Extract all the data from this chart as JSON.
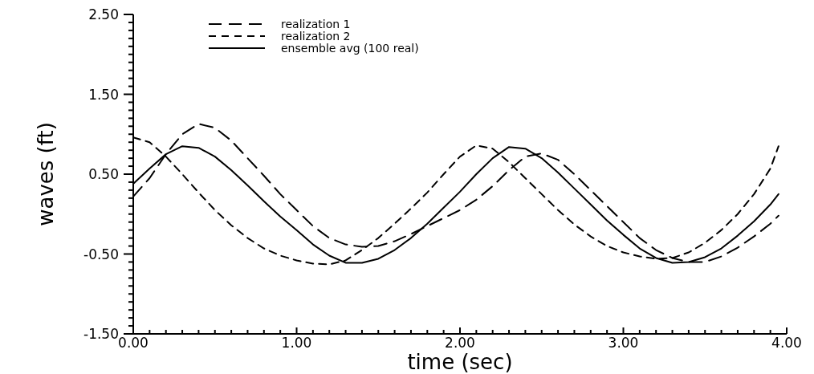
{
  "chart_data": {
    "type": "line",
    "xlabel": "time (sec)",
    "ylabel": "waves (ft)",
    "xlim": [
      0,
      4
    ],
    "ylim": [
      -1.5,
      2.5
    ],
    "legend": "top",
    "grid": false,
    "marker": "none",
    "xticks": [
      {
        "value": 0,
        "label": "0.00"
      },
      {
        "value": 0.1,
        "label": null
      },
      {
        "value": 0.2,
        "label": null
      },
      {
        "value": 0.3,
        "label": null
      },
      {
        "value": 0.4,
        "label": null
      },
      {
        "value": 0.5,
        "label": null
      },
      {
        "value": 0.6,
        "label": null
      },
      {
        "value": 0.7,
        "label": null
      },
      {
        "value": 0.8,
        "label": null
      },
      {
        "value": 0.9,
        "label": null
      },
      {
        "value": 1,
        "label": "1.00"
      },
      {
        "value": 1.1,
        "label": null
      },
      {
        "value": 1.2,
        "label": null
      },
      {
        "value": 1.3,
        "label": null
      },
      {
        "value": 1.4,
        "label": null
      },
      {
        "value": 1.5,
        "label": null
      },
      {
        "value": 1.6,
        "label": null
      },
      {
        "value": 1.7,
        "label": null
      },
      {
        "value": 1.8,
        "label": null
      },
      {
        "value": 1.9,
        "label": null
      },
      {
        "value": 2,
        "label": "2.00"
      },
      {
        "value": 2.1,
        "label": null
      },
      {
        "value": 2.2,
        "label": null
      },
      {
        "value": 2.3,
        "label": null
      },
      {
        "value": 2.4,
        "label": null
      },
      {
        "value": 2.5,
        "label": null
      },
      {
        "value": 2.6,
        "label": null
      },
      {
        "value": 2.7,
        "label": null
      },
      {
        "value": 2.8,
        "label": null
      },
      {
        "value": 2.9,
        "label": null
      },
      {
        "value": 3,
        "label": "3.00"
      },
      {
        "value": 3.1,
        "label": null
      },
      {
        "value": 3.2,
        "label": null
      },
      {
        "value": 3.3,
        "label": null
      },
      {
        "value": 3.4,
        "label": null
      },
      {
        "value": 3.5,
        "label": null
      },
      {
        "value": 3.6,
        "label": null
      },
      {
        "value": 3.7,
        "label": null
      },
      {
        "value": 3.8,
        "label": null
      },
      {
        "value": 3.9,
        "label": null
      },
      {
        "value": 4,
        "label": "4.00"
      }
    ],
    "yticks": [
      {
        "value": -1.5,
        "label": "-1.50"
      },
      {
        "value": -1.4,
        "label": null
      },
      {
        "value": -1.3,
        "label": null
      },
      {
        "value": -1.2,
        "label": null
      },
      {
        "value": -1.1,
        "label": null
      },
      {
        "value": -1.0,
        "label": null
      },
      {
        "value": -0.9,
        "label": null
      },
      {
        "value": -0.8,
        "label": null
      },
      {
        "value": -0.7,
        "label": null
      },
      {
        "value": -0.6,
        "label": null
      },
      {
        "value": -0.5,
        "label": "-0.50"
      },
      {
        "value": -0.4,
        "label": null
      },
      {
        "value": -0.3,
        "label": null
      },
      {
        "value": -0.2,
        "label": null
      },
      {
        "value": -0.1,
        "label": null
      },
      {
        "value": 0,
        "label": null
      },
      {
        "value": 0.1,
        "label": null
      },
      {
        "value": 0.2,
        "label": null
      },
      {
        "value": 0.3,
        "label": null
      },
      {
        "value": 0.4,
        "label": null
      },
      {
        "value": 0.5,
        "label": "0.50"
      },
      {
        "value": 0.6,
        "label": null
      },
      {
        "value": 0.7,
        "label": null
      },
      {
        "value": 0.8,
        "label": null
      },
      {
        "value": 0.9,
        "label": null
      },
      {
        "value": 1.0,
        "label": null
      },
      {
        "value": 1.1,
        "label": null
      },
      {
        "value": 1.2,
        "label": null
      },
      {
        "value": 1.3,
        "label": null
      },
      {
        "value": 1.4,
        "label": null
      },
      {
        "value": 1.5,
        "label": "1.50"
      },
      {
        "value": 1.6,
        "label": null
      },
      {
        "value": 1.7,
        "label": null
      },
      {
        "value": 1.8,
        "label": null
      },
      {
        "value": 1.9,
        "label": null
      },
      {
        "value": 2.0,
        "label": null
      },
      {
        "value": 2.1,
        "label": null
      },
      {
        "value": 2.2,
        "label": null
      },
      {
        "value": 2.3,
        "label": null
      },
      {
        "value": 2.4,
        "label": null
      },
      {
        "value": 2.5,
        "label": "2.50"
      }
    ],
    "x": [
      0,
      0.1,
      0.2,
      0.3,
      0.4,
      0.5,
      0.6,
      0.7,
      0.8,
      0.9,
      1.0,
      1.1,
      1.2,
      1.3,
      1.4,
      1.5,
      1.6,
      1.7,
      1.8,
      1.9,
      2.0,
      2.1,
      2.2,
      2.3,
      2.4,
      2.5,
      2.6,
      2.7,
      2.8,
      2.9,
      3.0,
      3.1,
      3.2,
      3.3,
      3.4,
      3.5,
      3.6,
      3.7,
      3.8,
      3.9,
      3.95
    ],
    "series": [
      {
        "name": "realization 1",
        "color": "#000000",
        "line_style": "dashed",
        "values": [
          0.22,
          0.45,
          0.75,
          1.0,
          1.13,
          1.08,
          0.92,
          0.7,
          0.48,
          0.25,
          0.05,
          -0.15,
          -0.3,
          -0.38,
          -0.41,
          -0.4,
          -0.34,
          -0.25,
          -0.15,
          -0.05,
          0.05,
          0.18,
          0.35,
          0.55,
          0.72,
          0.76,
          0.68,
          0.5,
          0.3,
          0.1,
          -0.1,
          -0.3,
          -0.45,
          -0.55,
          -0.6,
          -0.6,
          -0.53,
          -0.42,
          -0.28,
          -0.12,
          -0.02
        ]
      },
      {
        "name": "realization 2",
        "color": "#000000",
        "line_style": "dashed",
        "values": [
          0.96,
          0.9,
          0.72,
          0.5,
          0.27,
          0.05,
          -0.14,
          -0.3,
          -0.43,
          -0.52,
          -0.58,
          -0.62,
          -0.63,
          -0.58,
          -0.45,
          -0.3,
          -0.12,
          0.07,
          0.27,
          0.5,
          0.72,
          0.86,
          0.82,
          0.65,
          0.45,
          0.25,
          0.05,
          -0.13,
          -0.28,
          -0.4,
          -0.48,
          -0.53,
          -0.56,
          -0.55,
          -0.48,
          -0.36,
          -0.2,
          0.0,
          0.25,
          0.57,
          0.85
        ]
      },
      {
        "name": "ensemble avg (100 real)",
        "color": "#000000",
        "line_style": "solid",
        "values": [
          0.38,
          0.57,
          0.75,
          0.85,
          0.83,
          0.72,
          0.55,
          0.36,
          0.16,
          -0.03,
          -0.2,
          -0.38,
          -0.52,
          -0.61,
          -0.61,
          -0.56,
          -0.45,
          -0.3,
          -0.12,
          0.08,
          0.28,
          0.5,
          0.7,
          0.84,
          0.82,
          0.7,
          0.52,
          0.32,
          0.12,
          -0.08,
          -0.26,
          -0.43,
          -0.55,
          -0.61,
          -0.6,
          -0.54,
          -0.43,
          -0.27,
          -0.09,
          0.12,
          0.25
        ]
      }
    ]
  }
}
